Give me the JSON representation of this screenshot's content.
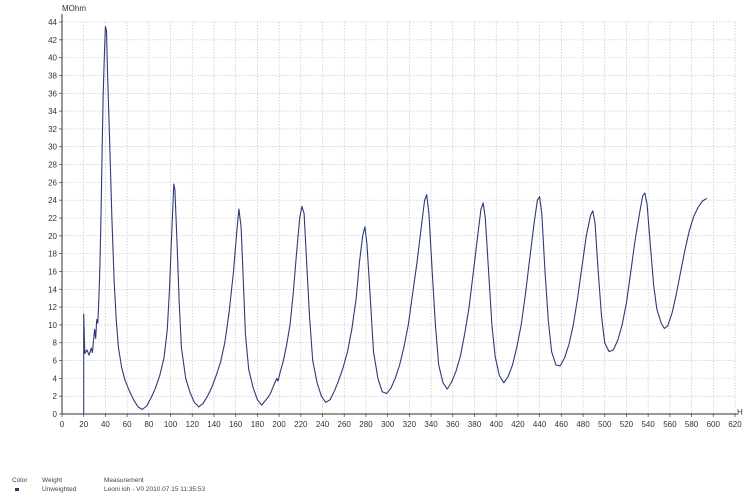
{
  "chart_data": {
    "type": "line",
    "ylabel": "MOhm",
    "xlabel": "H",
    "xlim": [
      0,
      620
    ],
    "ylim": [
      0,
      44
    ],
    "xticks": [
      0,
      20,
      40,
      60,
      80,
      100,
      120,
      140,
      160,
      180,
      200,
      220,
      240,
      260,
      280,
      300,
      320,
      340,
      360,
      380,
      400,
      420,
      440,
      460,
      480,
      500,
      520,
      540,
      560,
      580,
      600,
      620
    ],
    "yticks": [
      0,
      2,
      4,
      6,
      8,
      10,
      12,
      14,
      16,
      18,
      20,
      22,
      24,
      26,
      28,
      30,
      32,
      34,
      36,
      38,
      40,
      42,
      44
    ],
    "grid": true,
    "series": [
      {
        "color": "#2e3a78",
        "points": [
          [
            20,
            0
          ],
          [
            20,
            11.2
          ],
          [
            21,
            6.8
          ],
          [
            23,
            7.2
          ],
          [
            25,
            6.6
          ],
          [
            27,
            7.4
          ],
          [
            28,
            6.9
          ],
          [
            30,
            9.5
          ],
          [
            31,
            8.5
          ],
          [
            32,
            10.6
          ],
          [
            33,
            10.2
          ],
          [
            34,
            13
          ],
          [
            35,
            17
          ],
          [
            36,
            23
          ],
          [
            37,
            30
          ],
          [
            38,
            36
          ],
          [
            39,
            40
          ],
          [
            40,
            43.5
          ],
          [
            41,
            43
          ],
          [
            42,
            38
          ],
          [
            44,
            30
          ],
          [
            46,
            22
          ],
          [
            48,
            15
          ],
          [
            50,
            10.5
          ],
          [
            52,
            7.5
          ],
          [
            55,
            5.2
          ],
          [
            58,
            3.8
          ],
          [
            62,
            2.6
          ],
          [
            66,
            1.6
          ],
          [
            70,
            0.8
          ],
          [
            74,
            0.5
          ],
          [
            78,
            0.9
          ],
          [
            82,
            1.8
          ],
          [
            86,
            2.9
          ],
          [
            90,
            4.3
          ],
          [
            94,
            6.3
          ],
          [
            97,
            9.5
          ],
          [
            99,
            14
          ],
          [
            101,
            20
          ],
          [
            103,
            25.8
          ],
          [
            104,
            25.2
          ],
          [
            106,
            19
          ],
          [
            108,
            12.5
          ],
          [
            110,
            7.5
          ],
          [
            114,
            4
          ],
          [
            118,
            2.4
          ],
          [
            122,
            1.3
          ],
          [
            126,
            0.8
          ],
          [
            130,
            1.2
          ],
          [
            134,
            2.0
          ],
          [
            138,
            3.0
          ],
          [
            142,
            4.3
          ],
          [
            146,
            5.8
          ],
          [
            150,
            8
          ],
          [
            154,
            11.5
          ],
          [
            158,
            16
          ],
          [
            161,
            20.5
          ],
          [
            163,
            23
          ],
          [
            165,
            21
          ],
          [
            167,
            15
          ],
          [
            169,
            9
          ],
          [
            172,
            5
          ],
          [
            176,
            3
          ],
          [
            180,
            1.6
          ],
          [
            184,
            1.0
          ],
          [
            186,
            1.3
          ],
          [
            188,
            1.6
          ],
          [
            190,
            1.9
          ],
          [
            192,
            2.3
          ],
          [
            194,
            2.9
          ],
          [
            196,
            3.5
          ],
          [
            198,
            4.0
          ],
          [
            199,
            3.7
          ],
          [
            201,
            4.7
          ],
          [
            204,
            6
          ],
          [
            207,
            7.8
          ],
          [
            210,
            10
          ],
          [
            213,
            13.5
          ],
          [
            216,
            18
          ],
          [
            219,
            22
          ],
          [
            221,
            23.3
          ],
          [
            223,
            22.5
          ],
          [
            225,
            18
          ],
          [
            228,
            11
          ],
          [
            231,
            6
          ],
          [
            235,
            3.5
          ],
          [
            239,
            2
          ],
          [
            243,
            1.3
          ],
          [
            247,
            1.6
          ],
          [
            251,
            2.6
          ],
          [
            255,
            3.8
          ],
          [
            259,
            5.2
          ],
          [
            263,
            7
          ],
          [
            267,
            9.5
          ],
          [
            271,
            13
          ],
          [
            274,
            17
          ],
          [
            277,
            20
          ],
          [
            279,
            21
          ],
          [
            281,
            19
          ],
          [
            284,
            13
          ],
          [
            287,
            7
          ],
          [
            291,
            4
          ],
          [
            295,
            2.5
          ],
          [
            299,
            2.3
          ],
          [
            303,
            2.9
          ],
          [
            307,
            4
          ],
          [
            311,
            5.5
          ],
          [
            315,
            7.5
          ],
          [
            319,
            10
          ],
          [
            323,
            13.5
          ],
          [
            327,
            17
          ],
          [
            331,
            21
          ],
          [
            334,
            24
          ],
          [
            336,
            24.6
          ],
          [
            338,
            22.5
          ],
          [
            341,
            16
          ],
          [
            344,
            10
          ],
          [
            347,
            5.5
          ],
          [
            351,
            3.5
          ],
          [
            355,
            2.8
          ],
          [
            359,
            3.6
          ],
          [
            363,
            4.8
          ],
          [
            367,
            6.5
          ],
          [
            371,
            9
          ],
          [
            375,
            12
          ],
          [
            379,
            16
          ],
          [
            383,
            20
          ],
          [
            386,
            23
          ],
          [
            388,
            23.7
          ],
          [
            390,
            22
          ],
          [
            393,
            16
          ],
          [
            396,
            10
          ],
          [
            399,
            6.5
          ],
          [
            403,
            4.3
          ],
          [
            407,
            3.5
          ],
          [
            411,
            4.2
          ],
          [
            415,
            5.5
          ],
          [
            419,
            7.5
          ],
          [
            423,
            10
          ],
          [
            427,
            13.5
          ],
          [
            431,
            17.5
          ],
          [
            435,
            21.5
          ],
          [
            438,
            24
          ],
          [
            440,
            24.4
          ],
          [
            442,
            22.5
          ],
          [
            445,
            16
          ],
          [
            448,
            10.5
          ],
          [
            451,
            7
          ],
          [
            455,
            5.5
          ],
          [
            459,
            5.4
          ],
          [
            463,
            6.3
          ],
          [
            467,
            7.8
          ],
          [
            471,
            10
          ],
          [
            475,
            13
          ],
          [
            479,
            16.5
          ],
          [
            483,
            20
          ],
          [
            487,
            22.3
          ],
          [
            489,
            22.8
          ],
          [
            491,
            21.5
          ],
          [
            494,
            16
          ],
          [
            497,
            11
          ],
          [
            500,
            8
          ],
          [
            504,
            7
          ],
          [
            508,
            7.2
          ],
          [
            512,
            8.3
          ],
          [
            516,
            10
          ],
          [
            520,
            12.5
          ],
          [
            524,
            16
          ],
          [
            528,
            19.5
          ],
          [
            532,
            22.5
          ],
          [
            535,
            24.5
          ],
          [
            537,
            24.8
          ],
          [
            539,
            23.5
          ],
          [
            542,
            19
          ],
          [
            545,
            14.5
          ],
          [
            548,
            11.8
          ],
          [
            552,
            10.2
          ],
          [
            555,
            9.6
          ],
          [
            558,
            9.9
          ],
          [
            562,
            11.3
          ],
          [
            566,
            13.5
          ],
          [
            570,
            16
          ],
          [
            574,
            18.5
          ],
          [
            578,
            20.6
          ],
          [
            582,
            22.2
          ],
          [
            586,
            23.2
          ],
          [
            590,
            23.9
          ],
          [
            594,
            24.2
          ]
        ]
      }
    ]
  },
  "legend": {
    "headers": {
      "color": "Color",
      "weight": "Weight",
      "measurement": "Measurement"
    },
    "rows": [
      {
        "weight": "Unweighted",
        "measurement": "Leoni ioh - V0 2010.07.15 11:35:53",
        "color": "#2e3a78"
      }
    ]
  }
}
